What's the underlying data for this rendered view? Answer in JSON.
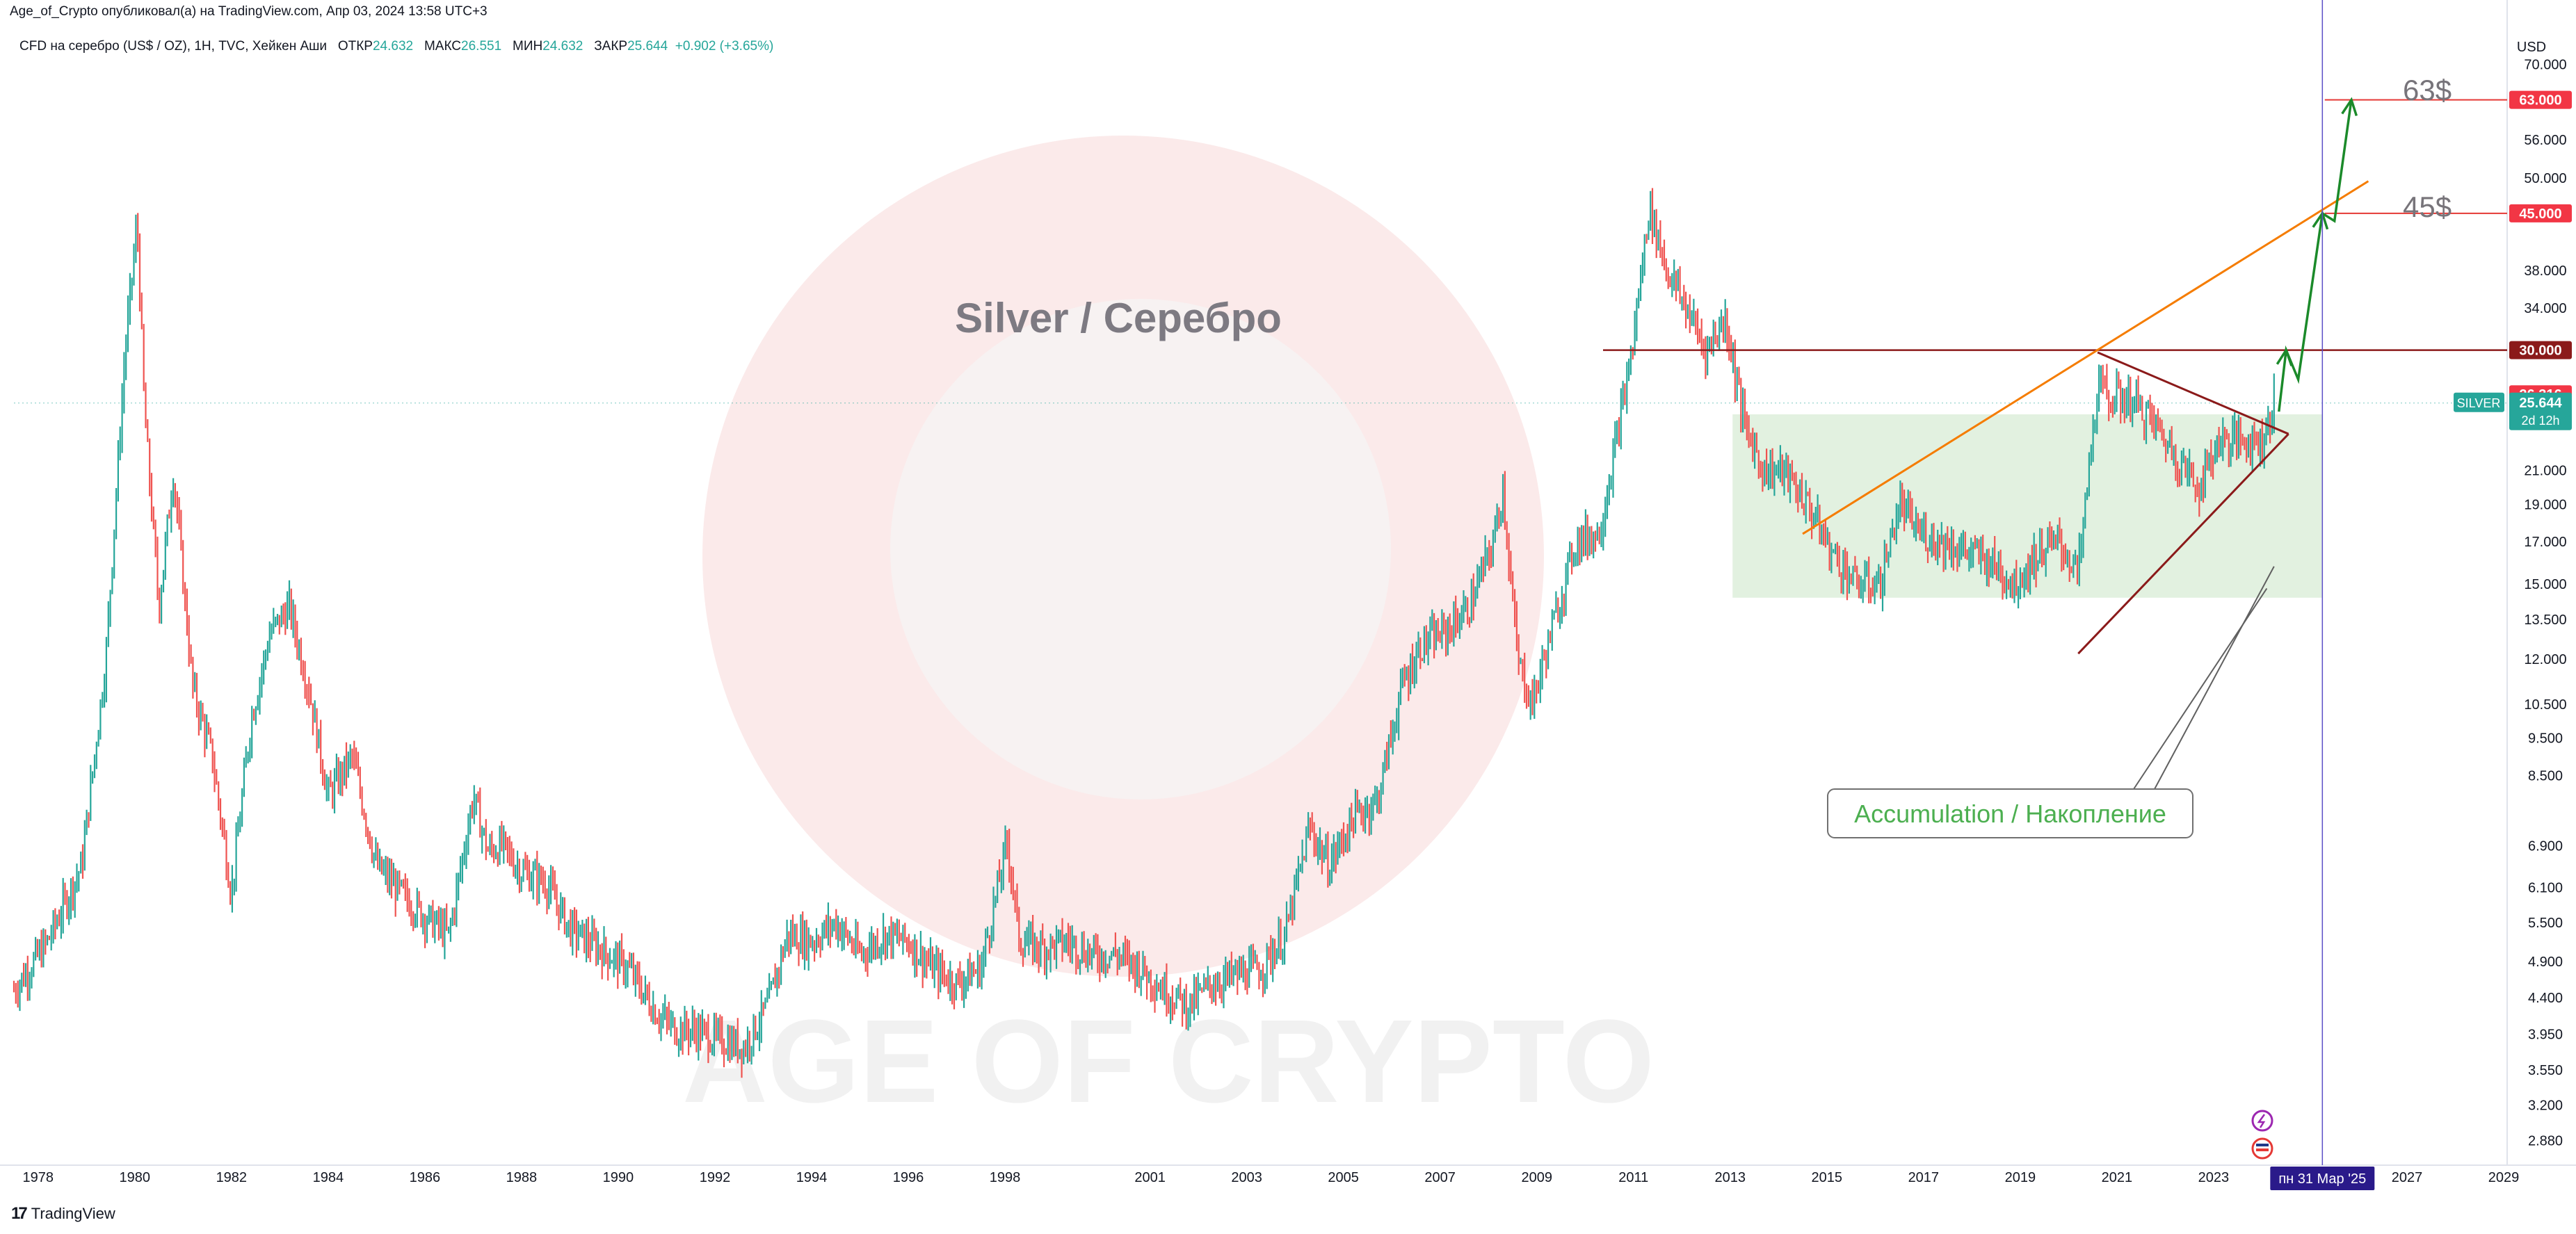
{
  "header": {
    "publisher": "Age_of_Crypto опубликовал(а) на TradingView.com, Апр 03, 2024 13:58 UTC+3"
  },
  "legend": {
    "symbol": "CFD на серебро (US$ / OZ), 1Н, TVC, Хейкен Аши",
    "open_label": "ОТКР",
    "open": "24.632",
    "high_label": "МАКС",
    "high": "26.551",
    "low_label": "МИН",
    "low": "24.632",
    "close_label": "ЗАКР",
    "close": "25.644",
    "change": "+0.902 (+3.65%)"
  },
  "footer": {
    "brand": "TradingView"
  },
  "watermark": {
    "text": "AGE OF CRYPTO"
  },
  "colors": {
    "up": "#26a69a",
    "down": "#ef5350",
    "orange": "#f57c00",
    "darkred": "#8b1a1a",
    "red_line": "#e53935",
    "green_arrow": "#1b8a2a",
    "zone": "#d8ecd6",
    "vline": "#5b4fc7",
    "label_bg": "#2a1a8a",
    "accum_text": "#4caf50"
  },
  "icons": [
    "lightning-icon",
    "flag-icon",
    "tradingview-logo-icon"
  ],
  "chart_data": {
    "type": "line",
    "title": "Silver / Серебро",
    "style": "heikin-ashi candles",
    "y_scale": "log",
    "currency": "USD",
    "ylim": [
      2.7,
      78
    ],
    "xlim": [
      1977.5,
      2029
    ],
    "x_ticks": [
      "1978",
      "1980",
      "1982",
      "1984",
      "1986",
      "1988",
      "1990",
      "1992",
      "1994",
      "1996",
      "1998",
      "2001",
      "2003",
      "2005",
      "2007",
      "2009",
      "2011",
      "2013",
      "2015",
      "2017",
      "2019",
      "2021",
      "2023",
      "2027",
      "2029"
    ],
    "x_tick_values": [
      1978,
      1980,
      1982,
      1984,
      1986,
      1988,
      1990,
      1992,
      1994,
      1996,
      1998,
      2001,
      2003,
      2005,
      2007,
      2009,
      2011,
      2013,
      2015,
      2017,
      2019,
      2021,
      2023,
      2027,
      2029
    ],
    "y_ticks": [
      "70.000",
      "56.000",
      "50.000",
      "38.000",
      "34.000",
      "21.000",
      "19.000",
      "17.000",
      "15.000",
      "13.500",
      "12.000",
      "10.500",
      "9.500",
      "8.500",
      "6.900",
      "6.100",
      "5.500",
      "4.900",
      "4.400",
      "3.950",
      "3.550",
      "3.200",
      "2.880"
    ],
    "y_tick_values": [
      70,
      56,
      50,
      38,
      34,
      21,
      19,
      17,
      15,
      13.5,
      12,
      10.5,
      9.5,
      8.5,
      6.9,
      6.1,
      5.5,
      4.9,
      4.4,
      3.95,
      3.55,
      3.2,
      2.88
    ],
    "series": [
      {
        "x": [
          1977.5,
          1978.2,
          1978.9,
          1979.4,
          1979.8,
          1980.05,
          1980.2,
          1980.5,
          1980.8,
          1981.2,
          1981.6,
          1982.0,
          1982.4,
          1982.8,
          1983.2,
          1983.6,
          1984.0,
          1984.5,
          1985.0,
          1985.5,
          1986.0,
          1986.5,
          1987.0,
          1987.3,
          1987.6,
          1988.0,
          1988.5,
          1989.0,
          1989.6,
          1990.2,
          1990.8,
          1991.2,
          1991.6,
          1992.0,
          1992.6,
          1993.1,
          1993.5,
          1994.0,
          1994.5,
          1995.0,
          1995.5,
          1996.0,
          1996.5,
          1997.0,
          1997.5,
          1998.05,
          1998.3,
          1998.8,
          1999.3,
          1999.8,
          2000.3,
          2000.8,
          2001.3,
          2001.8,
          2002.3,
          2002.8,
          2003.3,
          2003.8,
          2004.3,
          2004.7,
          2005.2,
          2005.7,
          2006.2,
          2006.6,
          2007.1,
          2007.6,
          2008.1,
          2008.3,
          2008.6,
          2008.9,
          2009.3,
          2009.8,
          2010.3,
          2010.8,
          2011.0,
          2011.32,
          2011.7,
          2012.1,
          2012.5,
          2012.9,
          2013.3,
          2013.7,
          2014.1,
          2014.6,
          2015.1,
          2015.6,
          2016.1,
          2016.5,
          2016.9,
          2017.4,
          2017.9,
          2018.4,
          2018.9,
          2019.4,
          2019.8,
          2020.2,
          2020.6,
          2020.9,
          2021.3,
          2021.8,
          2022.2,
          2022.7,
          2023.1,
          2023.6,
          2024.0,
          2024.25
        ],
        "y": [
          4.5,
          5.2,
          6.5,
          12,
          30,
          44,
          25,
          14,
          21,
          11,
          9,
          6,
          10,
          13,
          14,
          11,
          8,
          9,
          6.5,
          6,
          5.6,
          5.3,
          8,
          6.8,
          6.9,
          6.4,
          6.2,
          5.4,
          5.1,
          4.8,
          4.2,
          4.0,
          4.0,
          3.9,
          3.8,
          4.3,
          5.3,
          5.2,
          5.5,
          5.0,
          5.3,
          5.2,
          4.8,
          4.6,
          4.8,
          7.0,
          5.2,
          5.1,
          5.2,
          5.0,
          5.0,
          4.8,
          4.5,
          4.3,
          4.6,
          4.7,
          4.8,
          5.3,
          7.3,
          6.5,
          7.5,
          7.9,
          11,
          12.5,
          13,
          14,
          17,
          20,
          12,
          10.5,
          13,
          17,
          17.5,
          26,
          31,
          46,
          38,
          34,
          30,
          33,
          24,
          21,
          21,
          19,
          16.5,
          15,
          15,
          19,
          17.5,
          17,
          16.5,
          16,
          15,
          16.5,
          17,
          15.5,
          27,
          26,
          26,
          24,
          22,
          20,
          23,
          23,
          23,
          25.6
        ]
      }
    ],
    "annotations": {
      "title_text": "Silver / Серебро",
      "target_63": "63$",
      "target_45": "45$",
      "accumulation": "Accumulation / Накопление",
      "h_line_30": 30,
      "h_line_45": 45,
      "h_line_63": 63,
      "accumulation_zone": {
        "x0": 2013.05,
        "x1": 2025.25,
        "y0": 14.4,
        "y1": 24.8
      },
      "trendline": {
        "x0": 2014.5,
        "y0": 17.4,
        "x1": 2026.2,
        "y1": 49.5
      },
      "triangle_upper": {
        "x0": 2020.6,
        "y0": 29.8,
        "x1": 2024.55,
        "y1": 23.4
      },
      "triangle_lower": {
        "x0": 2020.2,
        "y0": 12.2,
        "x1": 2024.55,
        "y1": 23.4
      },
      "forecast_path": {
        "x": [
          2024.35,
          2024.5,
          2024.75,
          2025.25,
          2025.5,
          2025.85
        ],
        "y": [
          25,
          30,
          27.5,
          45,
          44,
          63
        ]
      },
      "vertical_date": 2025.25
    },
    "price_labels": {
      "l70": "70.000",
      "l63": "63.000",
      "l56": "56.000",
      "l50": "50.000",
      "l45": "45.000",
      "l38": "38.000",
      "l34": "34.000",
      "l30": "30.000",
      "l26": "26.316",
      "l25": "25.644",
      "timer": "2d 12h",
      "symbol_tag": "SILVER",
      "currency": "USD",
      "date_label": "пн 31 Мар '25"
    }
  }
}
